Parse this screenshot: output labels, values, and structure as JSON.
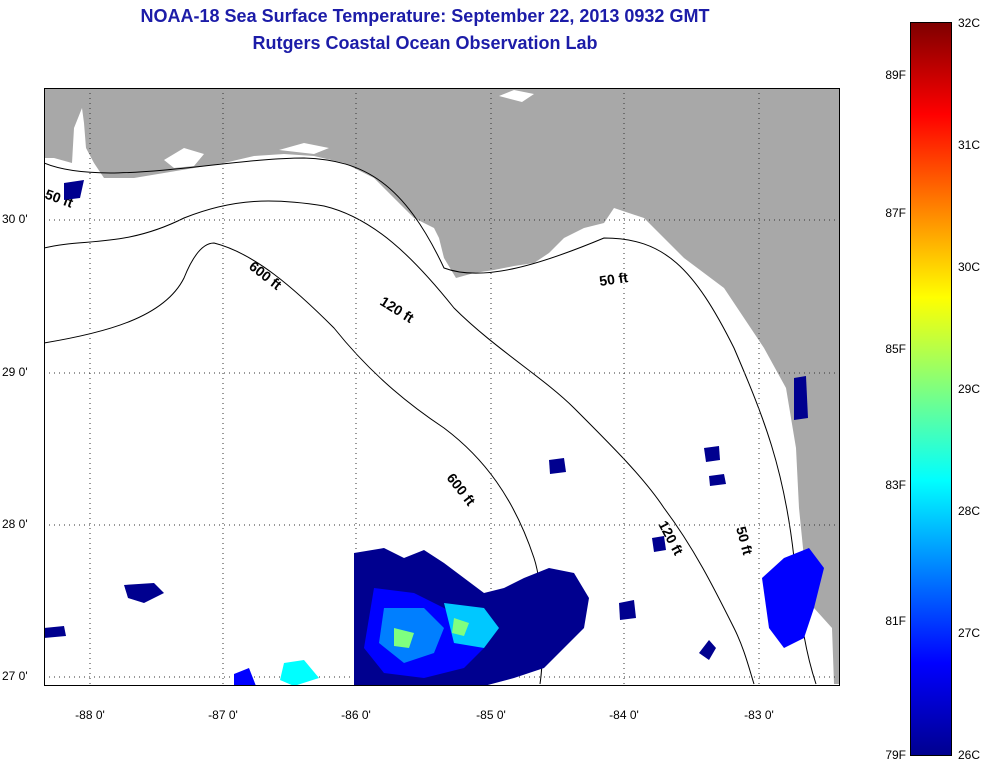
{
  "title": {
    "line1": "NOAA-18 Sea Surface Temperature:  September 22, 2013 0932 GMT",
    "line2": "Rutgers Coastal Ocean Observation Lab"
  },
  "map": {
    "land_color": "#a8a8a8",
    "ocean_color": "#ffffff",
    "latitude_labels": [
      "30 0'",
      "29 0'",
      "28 0'",
      "27 0'"
    ],
    "longitude_labels": [
      "-88 0'",
      "-87 0'",
      "-86 0'",
      "-85 0'",
      "-84 0'",
      "-83 0'"
    ],
    "contour_labels": {
      "c50_west": "50 ft",
      "c50_east": "50 ft",
      "c50_south": "50 ft",
      "c120_north": "120 ft",
      "c120_south": "120 ft",
      "c600_north": "600 ft",
      "c600_south": "600 ft"
    }
  },
  "colorbar": {
    "celsius_labels": [
      "32C",
      "31C",
      "30C",
      "29C",
      "28C",
      "27C",
      "26C"
    ],
    "fahrenheit_labels": [
      "89F",
      "87F",
      "85F",
      "83F",
      "81F",
      "79F"
    ],
    "colors": [
      "#00008f",
      "#0000ff",
      "#007fff",
      "#00ffff",
      "#7fff7f",
      "#ffff00",
      "#ff7f00",
      "#ff0000",
      "#7f0000"
    ]
  }
}
